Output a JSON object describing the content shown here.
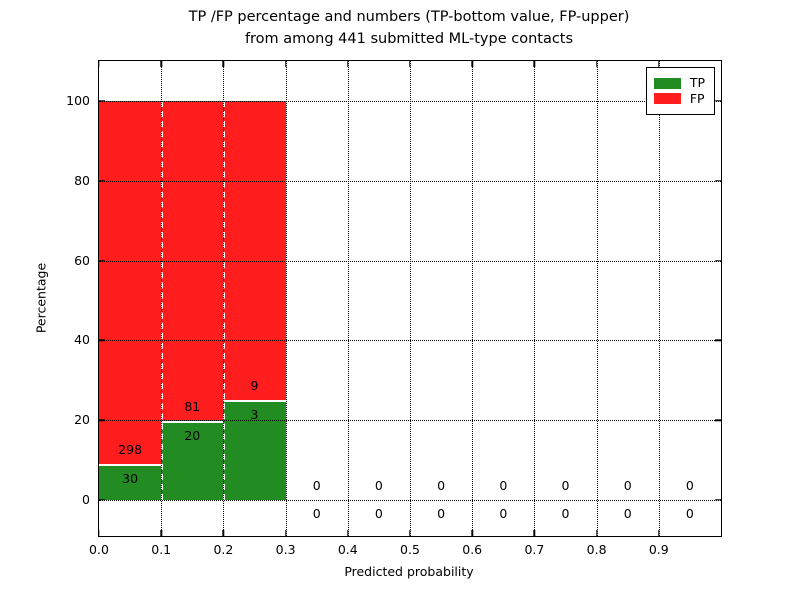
{
  "chart_data": {
    "type": "bar",
    "stacked": true,
    "normalized_to_percent": true,
    "title_line1": "TP /FP percentage and numbers (TP-bottom value, FP-upper)",
    "title_line2": "from among 441 submitted ML-type contacts",
    "xlabel": "Predicted probability",
    "ylabel": "Percentage",
    "xlim": [
      0.0,
      1.0
    ],
    "ylim": [
      -9,
      110
    ],
    "x_tick_values": [
      0.0,
      0.1,
      0.2,
      0.3,
      0.4,
      0.5,
      0.6,
      0.7,
      0.8,
      0.9
    ],
    "x_tick_labels": [
      "0.0",
      "0.1",
      "0.2",
      "0.3",
      "0.4",
      "0.5",
      "0.6",
      "0.7",
      "0.8",
      "0.9"
    ],
    "y_tick_values": [
      0,
      20,
      40,
      60,
      80,
      100
    ],
    "y_tick_labels": [
      "0",
      "20",
      "40",
      "60",
      "80",
      "100"
    ],
    "grid": "dotted",
    "legend_position": "upper right",
    "bar_width": 0.1,
    "total_contacts": 441,
    "bin_starts": [
      0.0,
      0.1,
      0.2,
      0.3,
      0.4,
      0.5,
      0.6,
      0.7,
      0.8,
      0.9
    ],
    "series": [
      {
        "name": "TP",
        "color": "#228b22",
        "counts": [
          30,
          20,
          3,
          0,
          0,
          0,
          0,
          0,
          0,
          0
        ],
        "percent": [
          9.1,
          19.8,
          25.0,
          0,
          0,
          0,
          0,
          0,
          0,
          0
        ]
      },
      {
        "name": "FP",
        "color": "#ff1d1d",
        "counts": [
          298,
          81,
          9,
          0,
          0,
          0,
          0,
          0,
          0,
          0
        ],
        "percent": [
          90.9,
          80.2,
          75.0,
          0,
          0,
          0,
          0,
          0,
          0,
          0
        ]
      }
    ]
  }
}
